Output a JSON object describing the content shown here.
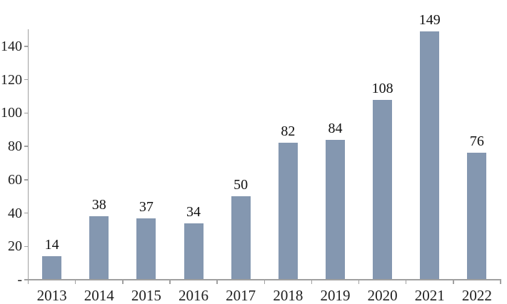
{
  "chart_data": {
    "type": "bar",
    "categories": [
      "2013",
      "2014",
      "2015",
      "2016",
      "2017",
      "2018",
      "2019",
      "2020",
      "2021",
      "2022"
    ],
    "values": [
      14,
      38,
      37,
      34,
      50,
      82,
      84,
      108,
      149,
      76
    ],
    "data_labels": [
      "14",
      "38",
      "37",
      "34",
      "50",
      "82",
      "84",
      "108",
      "149",
      "76"
    ],
    "title": "",
    "xlabel": "",
    "ylabel": "",
    "ylim": [
      0,
      150
    ],
    "y_ticks": {
      "values": [
        0,
        20,
        40,
        60,
        80,
        100,
        120,
        140
      ],
      "labels": [
        "-",
        "20",
        "40",
        "60",
        "80",
        "100",
        "120",
        "140"
      ]
    },
    "grid": false,
    "legend": false,
    "colors": {
      "bar_fill": "#8497B0",
      "axis_line": "#A0A0A0",
      "tick_text": "#1F1F1F",
      "data_label_text": "#111111",
      "background": "#FFFFFF"
    }
  }
}
